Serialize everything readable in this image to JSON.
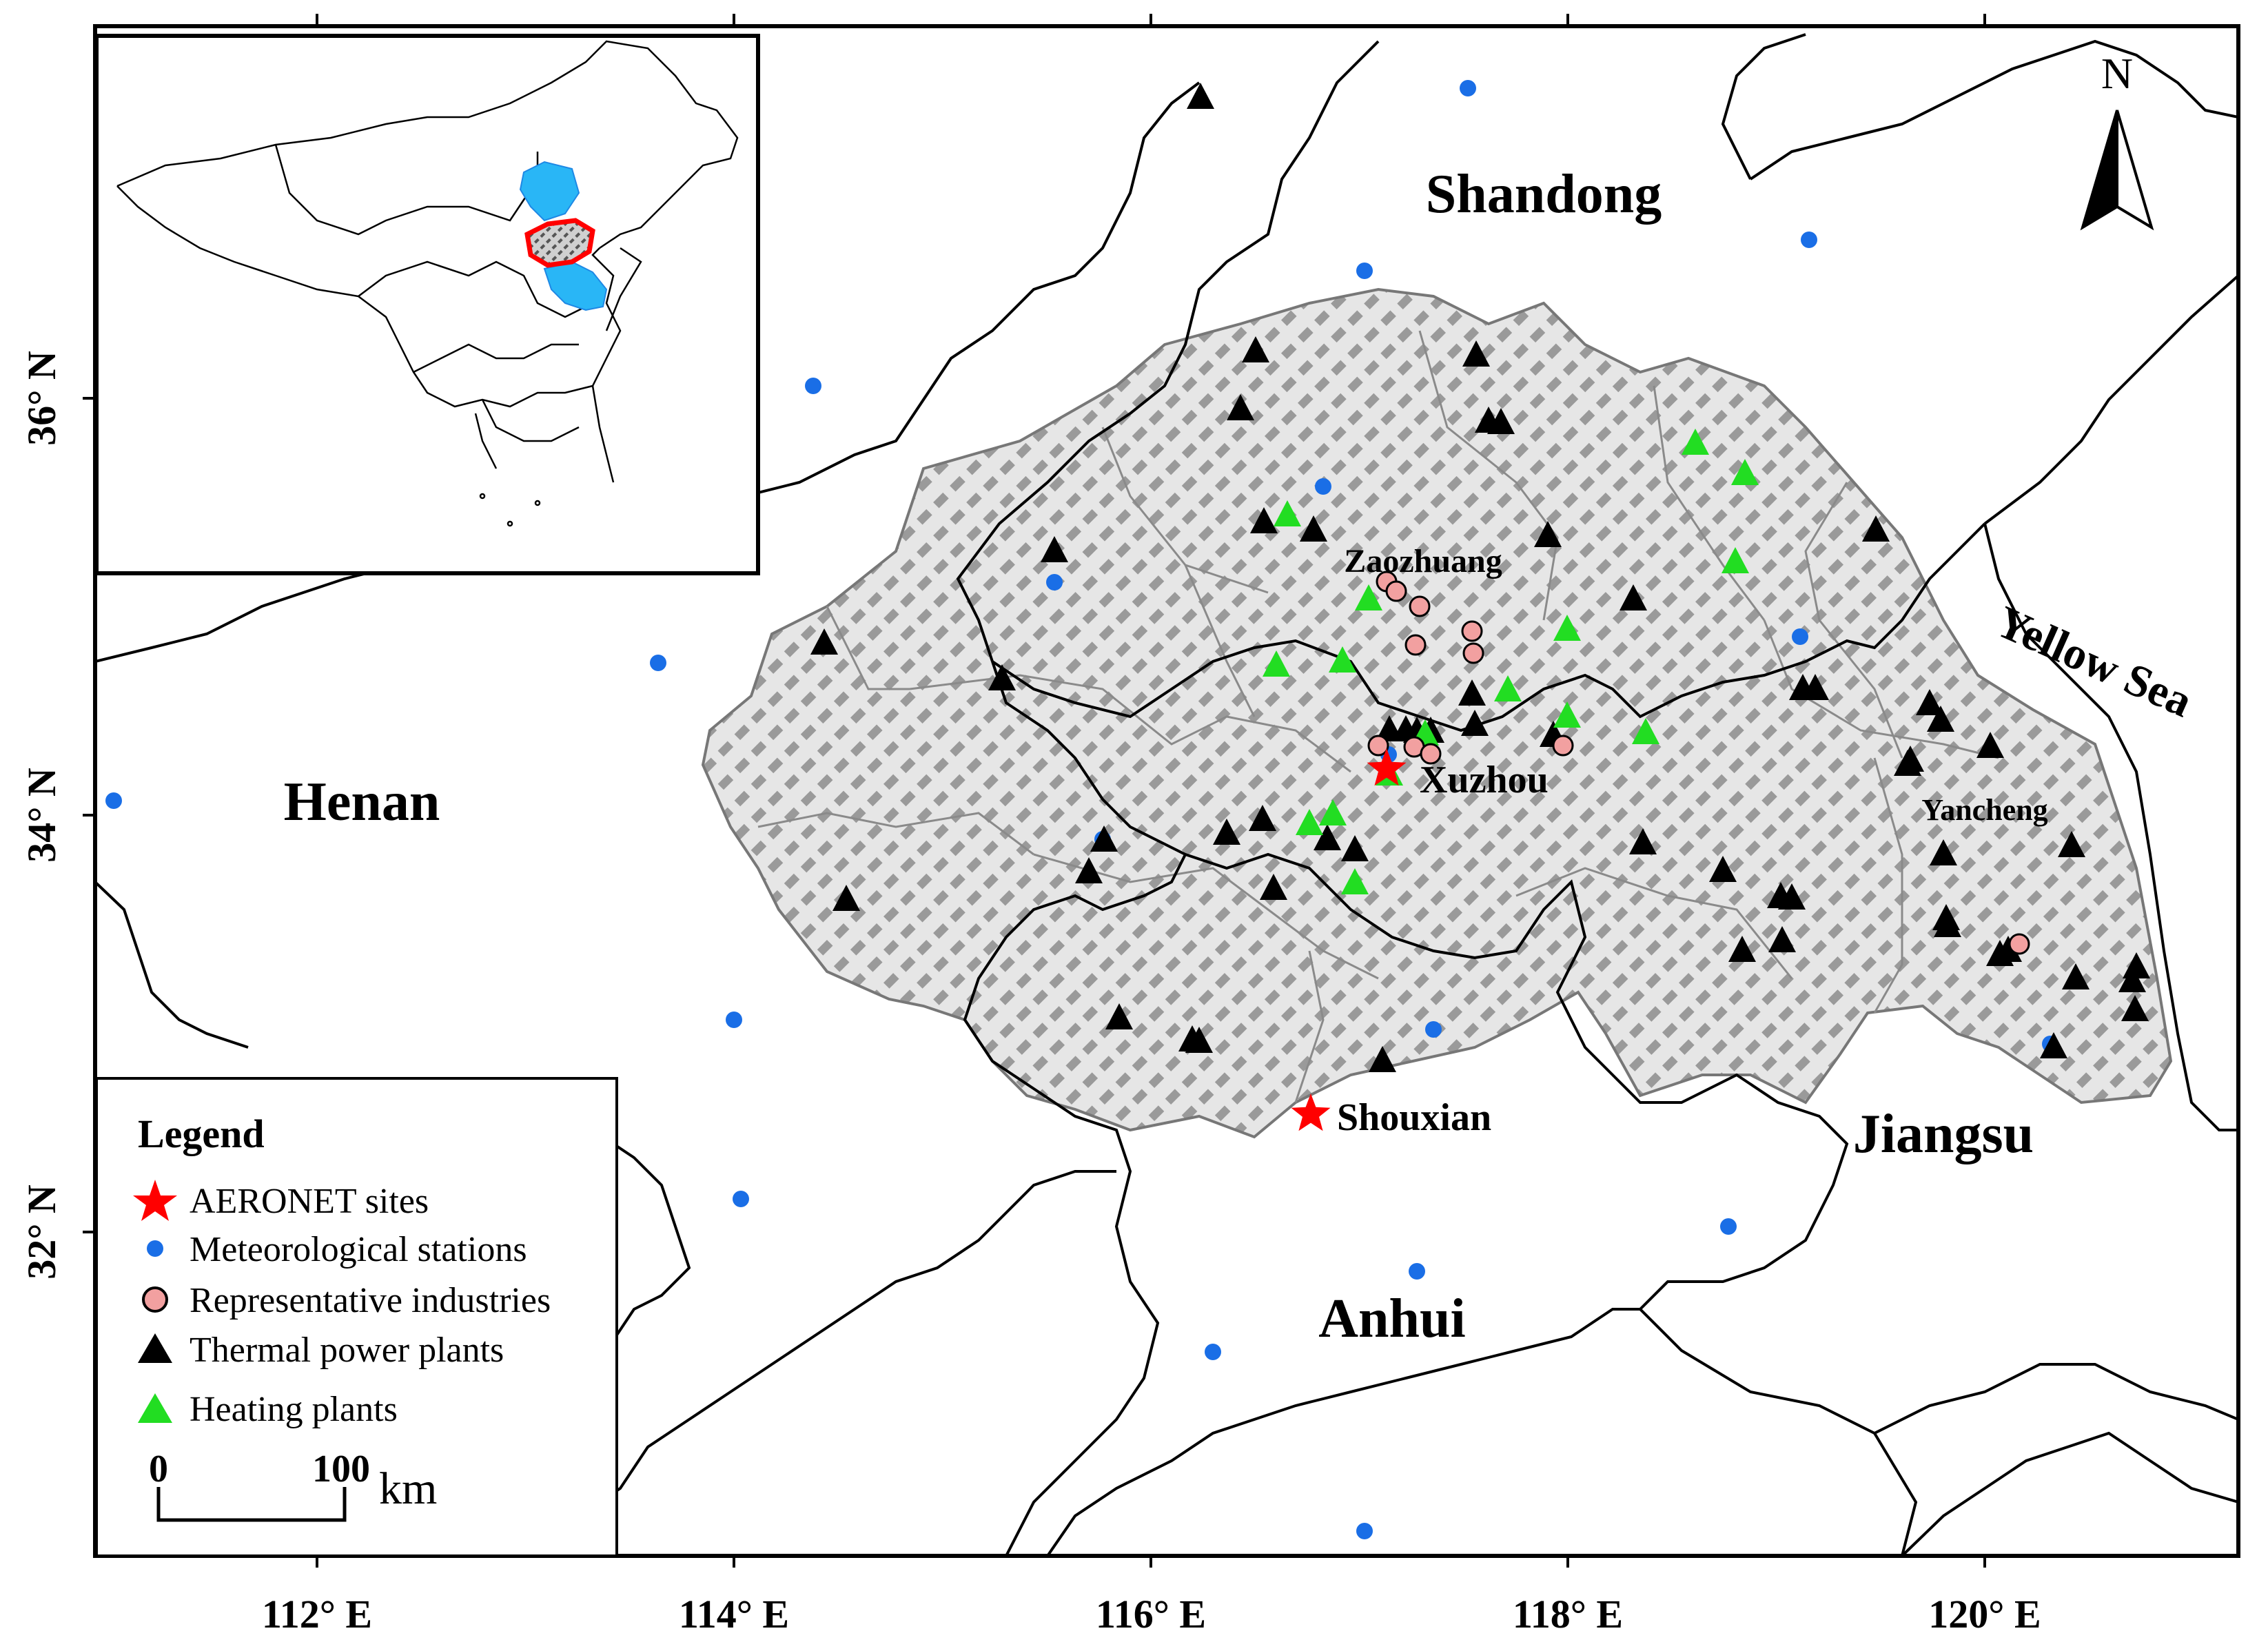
{
  "axes": {
    "lon_ticks": [
      "112° E",
      "114° E",
      "116° E",
      "118° E",
      "120° E"
    ],
    "lat_ticks": [
      "36° N",
      "34° N",
      "32° N"
    ]
  },
  "provinces": [
    "Shandong",
    "Henan",
    "Jiangsu",
    "Anhui"
  ],
  "sea_label": "Yellow Sea",
  "cities": [
    "Zaozhuang",
    "Xuzhou",
    "Yancheng",
    "Shouxian"
  ],
  "north_arrow": "N",
  "legend": {
    "title": "Legend",
    "items": [
      {
        "label": "AERONET sites",
        "symbol": "red-star",
        "color": "#ff0000"
      },
      {
        "label": "Meteorological stations",
        "symbol": "blue-dot",
        "color": "#1a6ee6"
      },
      {
        "label": "Representative industries",
        "symbol": "pink-circle",
        "color": "#f2a0a0"
      },
      {
        "label": "Thermal power plants",
        "symbol": "black-triangle",
        "color": "#000000"
      },
      {
        "label": "Heating plants",
        "symbol": "green-triangle",
        "color": "#22dd22"
      }
    ]
  },
  "scale_bar": {
    "start": "0",
    "end": "100",
    "unit": "km"
  },
  "colors": {
    "study_area_fill": "#d9d9d9",
    "study_area_hatch": "#9a9a9a",
    "inset_highlight": "#29b6f6",
    "inset_outline": "#ff0000"
  }
}
